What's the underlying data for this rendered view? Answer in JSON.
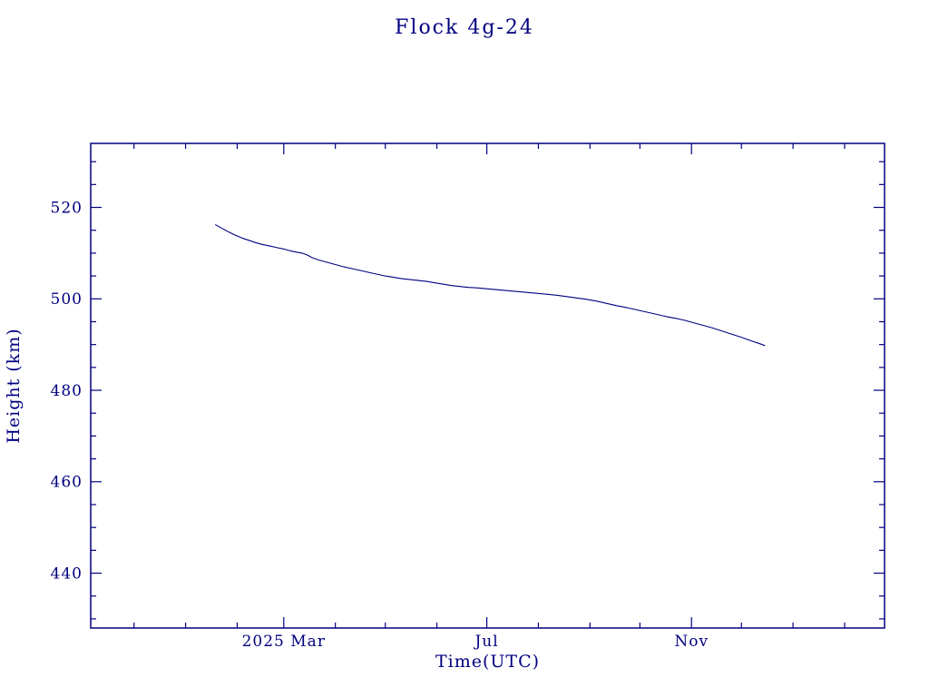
{
  "colors": {
    "accent": "#000080",
    "background": "#ffffff"
  },
  "chart_data": {
    "type": "line",
    "title": "Flock 4g-24",
    "xlabel": "Time(UTC)",
    "ylabel": "Height (km)",
    "x_unit": "days since 2025-01-01",
    "xlim": [
      -57,
      420
    ],
    "ylim": [
      428,
      534
    ],
    "grid": false,
    "legend": false,
    "y_major_ticks": [
      440,
      460,
      480,
      500,
      520
    ],
    "y_minor_step": 5,
    "x_major_ticks": [
      {
        "day": 59,
        "label": "2025 Mar"
      },
      {
        "day": 181,
        "label": "Jul"
      },
      {
        "day": 304,
        "label": "Nov"
      }
    ],
    "x_minor_ticks": [
      -31,
      0,
      31,
      59,
      90,
      120,
      151,
      181,
      212,
      243,
      273,
      304,
      334,
      365,
      396
    ],
    "series": [
      {
        "name": "Flock 4g-24 height",
        "points": [
          [
            18,
            516.2
          ],
          [
            22,
            515.4
          ],
          [
            26,
            514.6
          ],
          [
            30,
            513.9
          ],
          [
            34,
            513.3
          ],
          [
            38,
            512.8
          ],
          [
            42,
            512.3
          ],
          [
            46,
            511.9
          ],
          [
            50,
            511.6
          ],
          [
            55,
            511.2
          ],
          [
            59,
            510.9
          ],
          [
            63,
            510.5
          ],
          [
            67,
            510.2
          ],
          [
            70,
            510.0
          ],
          [
            73,
            509.6
          ],
          [
            76,
            509.0
          ],
          [
            80,
            508.5
          ],
          [
            85,
            508.0
          ],
          [
            90,
            507.5
          ],
          [
            95,
            507.0
          ],
          [
            100,
            506.6
          ],
          [
            105,
            506.2
          ],
          [
            110,
            505.8
          ],
          [
            115,
            505.4
          ],
          [
            120,
            505.0
          ],
          [
            125,
            504.7
          ],
          [
            130,
            504.4
          ],
          [
            135,
            504.2
          ],
          [
            140,
            504.0
          ],
          [
            145,
            503.8
          ],
          [
            150,
            503.5
          ],
          [
            155,
            503.2
          ],
          [
            160,
            502.9
          ],
          [
            165,
            502.7
          ],
          [
            170,
            502.5
          ],
          [
            175,
            502.4
          ],
          [
            181,
            502.2
          ],
          [
            187,
            502.0
          ],
          [
            193,
            501.8
          ],
          [
            199,
            501.6
          ],
          [
            205,
            501.4
          ],
          [
            211,
            501.2
          ],
          [
            217,
            501.0
          ],
          [
            223,
            500.8
          ],
          [
            229,
            500.5
          ],
          [
            235,
            500.2
          ],
          [
            241,
            499.9
          ],
          [
            247,
            499.5
          ],
          [
            253,
            499.0
          ],
          [
            259,
            498.5
          ],
          [
            265,
            498.1
          ],
          [
            271,
            497.6
          ],
          [
            277,
            497.1
          ],
          [
            283,
            496.6
          ],
          [
            289,
            496.1
          ],
          [
            295,
            495.7
          ],
          [
            300,
            495.3
          ],
          [
            304,
            494.9
          ],
          [
            310,
            494.3
          ],
          [
            316,
            493.7
          ],
          [
            322,
            493.0
          ],
          [
            328,
            492.3
          ],
          [
            334,
            491.6
          ],
          [
            340,
            490.8
          ],
          [
            345,
            490.2
          ],
          [
            348,
            489.8
          ]
        ]
      }
    ]
  }
}
